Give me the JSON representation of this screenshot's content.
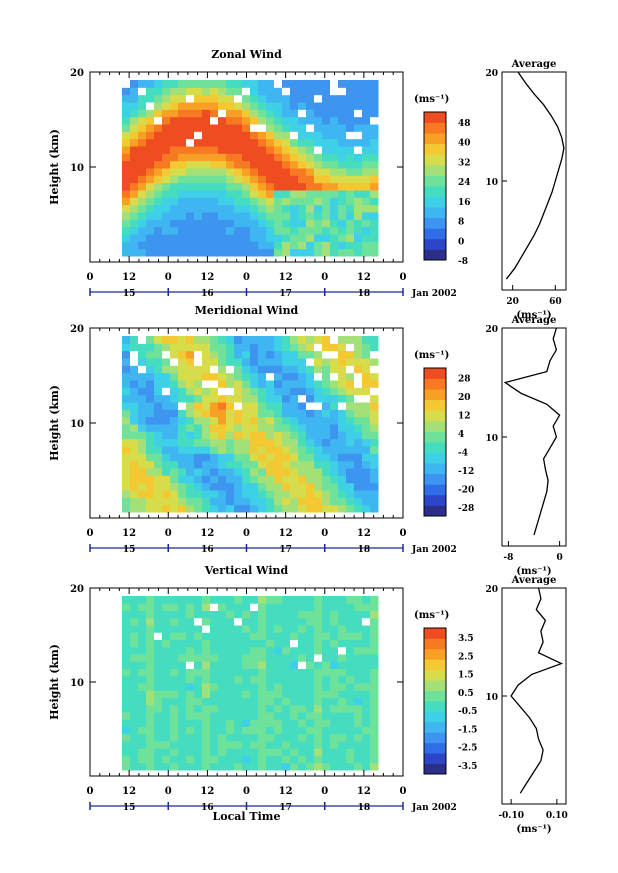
{
  "chart_data": [
    {
      "type": "heatmap",
      "title": "Zonal Wind",
      "ylabel": "Height (km)",
      "yticks": [
        "20",
        "10"
      ],
      "ylim": [
        0,
        20
      ],
      "time_ticks": [
        "0",
        "12",
        "0",
        "12",
        "0",
        "12",
        "0",
        "12",
        "0"
      ],
      "date_ticks": [
        "15",
        "16",
        "17",
        "18"
      ],
      "date_suffix": "Jan 2002",
      "colorbar": {
        "unit": "(ms⁻¹)",
        "ticks": [
          "48",
          "40",
          "32",
          "24",
          "16",
          "8",
          "0",
          "-8"
        ],
        "range": [
          -8,
          52
        ]
      },
      "average": {
        "title": "Average",
        "xlabel": "(ms⁻¹)",
        "xticks": [
          "20",
          "60"
        ],
        "yticks": [
          "20",
          "10"
        ],
        "xlim": [
          10,
          70
        ],
        "profile_heights": [
          1,
          2,
          3,
          4,
          5,
          6,
          7,
          8,
          9,
          10,
          11,
          12,
          13,
          14,
          15,
          16,
          17,
          18,
          19,
          20
        ],
        "profile_values": [
          14,
          22,
          28,
          34,
          40,
          45,
          49,
          53,
          57,
          60,
          63,
          66,
          68,
          66,
          62,
          56,
          49,
          40,
          32,
          25
        ]
      }
    },
    {
      "type": "heatmap",
      "title": "Meridional Wind",
      "ylabel": "Height (km)",
      "yticks": [
        "20",
        "10"
      ],
      "ylim": [
        0,
        20
      ],
      "time_ticks": [
        "0",
        "12",
        "0",
        "12",
        "0",
        "12",
        "0",
        "12",
        "0"
      ],
      "date_ticks": [
        "15",
        "16",
        "17",
        "18"
      ],
      "date_suffix": "Jan 2002",
      "colorbar": {
        "unit": "(ms⁻¹)",
        "ticks": [
          "28",
          "20",
          "12",
          "4",
          "-4",
          "-12",
          "-20",
          "-28"
        ],
        "range": [
          -32,
          32
        ]
      },
      "average": {
        "title": "Average",
        "xlabel": "(ms⁻¹)",
        "xticks": [
          "-8",
          "0"
        ],
        "yticks": [
          "20",
          "10"
        ],
        "xlim": [
          -9,
          1
        ],
        "profile_heights": [
          1,
          2,
          3,
          4,
          5,
          6,
          7,
          8,
          9,
          10,
          11,
          12,
          13,
          14,
          15,
          16,
          17,
          18,
          19,
          20
        ],
        "profile_values": [
          -4,
          -3.5,
          -3,
          -2.5,
          -2,
          -1.8,
          -2.2,
          -2.5,
          -1.5,
          -0.5,
          -1,
          0,
          -2,
          -6,
          -8.5,
          -2,
          -1.5,
          -0.5,
          -1,
          -0.5
        ]
      }
    },
    {
      "type": "heatmap",
      "title": "Vertical Wind",
      "ylabel": "Height (km)",
      "yticks": [
        "20",
        "10"
      ],
      "ylim": [
        0,
        20
      ],
      "time_ticks": [
        "0",
        "12",
        "0",
        "12",
        "0",
        "12",
        "0",
        "12",
        "0"
      ],
      "date_ticks": [
        "15",
        "16",
        "17",
        "18"
      ],
      "date_suffix": "Jan 2002",
      "xlabel": "Local Time",
      "colorbar": {
        "unit": "(ms⁻¹)",
        "ticks": [
          "3.5",
          "2.5",
          "1.5",
          "0.5",
          "-0.5",
          "-1.5",
          "-2.5",
          "-3.5"
        ],
        "range": [
          -4,
          4
        ]
      },
      "average": {
        "title": "Average",
        "xlabel": "(ms⁻¹)",
        "xticks": [
          "-0.10",
          "0.10"
        ],
        "yticks": [
          "20",
          "10"
        ],
        "xlim": [
          -0.14,
          0.14
        ],
        "profile_heights": [
          1,
          2,
          3,
          4,
          5,
          6,
          7,
          8,
          9,
          10,
          11,
          12,
          13,
          14,
          15,
          16,
          17,
          18,
          19,
          20
        ],
        "profile_values": [
          -0.06,
          -0.03,
          0.0,
          0.03,
          0.04,
          0.02,
          0.01,
          -0.02,
          -0.06,
          -0.1,
          -0.07,
          -0.01,
          0.12,
          0.02,
          0.04,
          0.03,
          0.05,
          0.01,
          0.03,
          0.02
        ]
      }
    }
  ]
}
